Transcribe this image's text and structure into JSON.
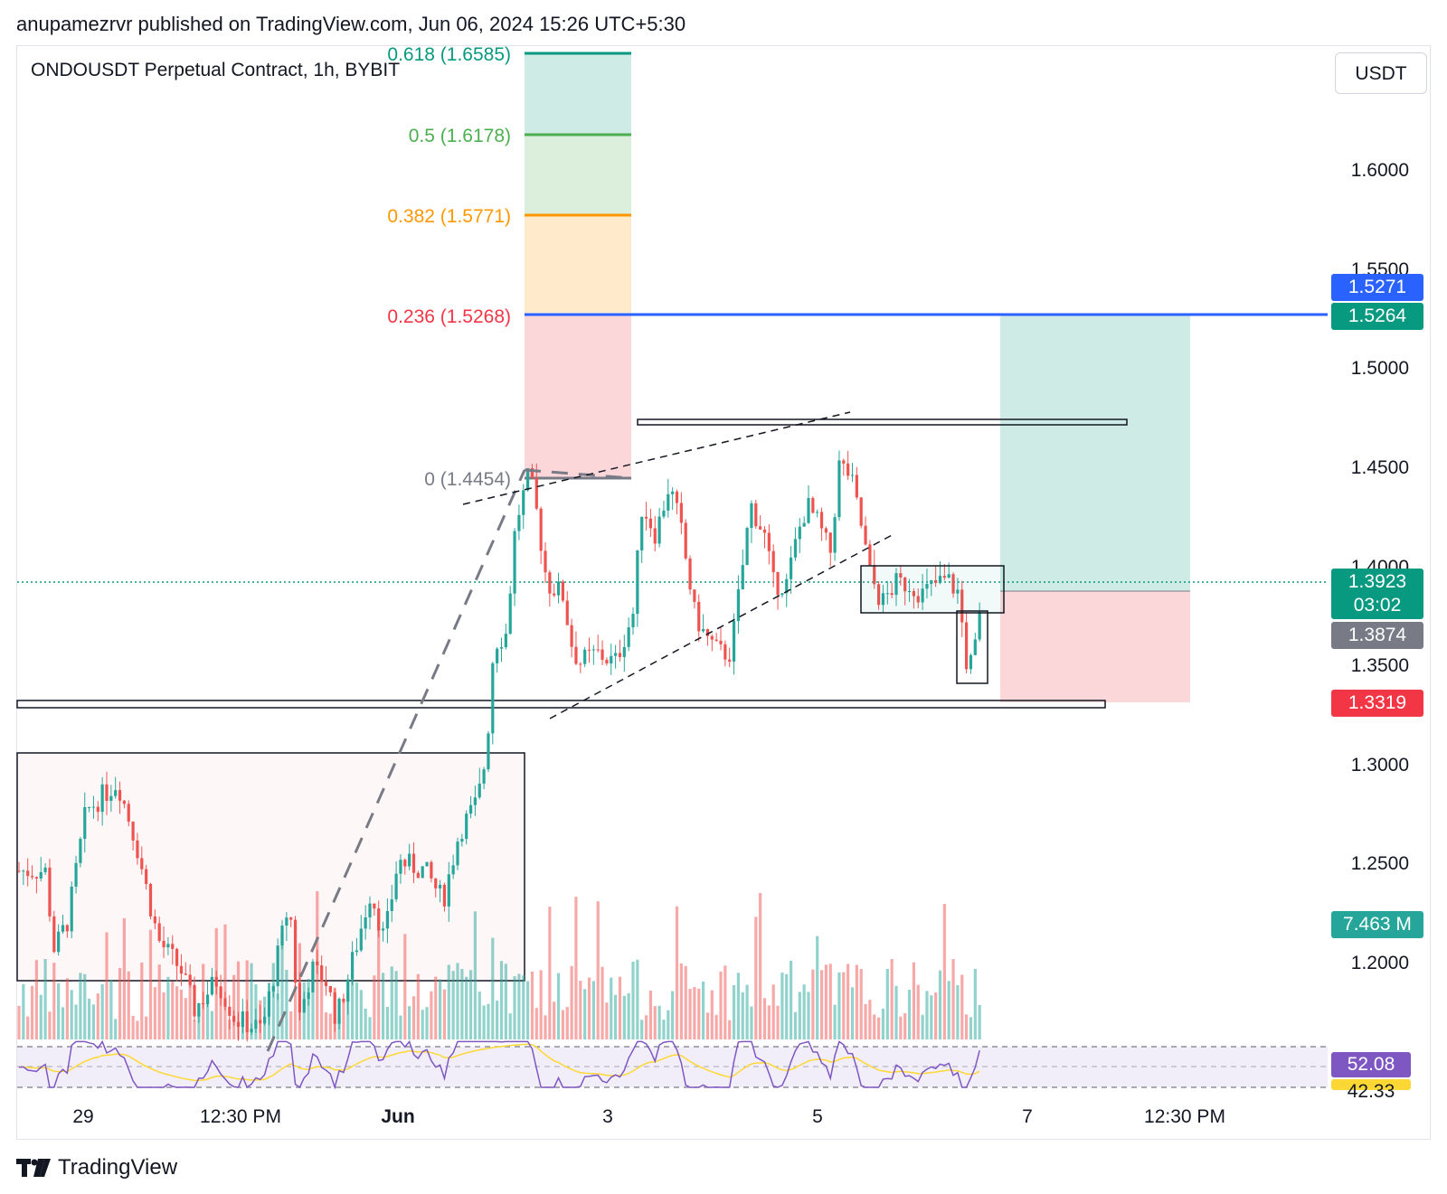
{
  "header": {
    "published": "anupamezrvr published on TradingView.com, Jun 06, 2024 15:26 UTC+5:30"
  },
  "symbol": {
    "title": "ONDOUSDT Perpetual Contract, 1h, BYBIT"
  },
  "currency_button": "USDT",
  "footer": {
    "brand": "TradingView"
  },
  "chart_data": {
    "type": "candlestick",
    "symbol": "ONDOUSDT Perpetual Contract",
    "interval": "1h",
    "exchange": "BYBIT",
    "y_axis": {
      "ticks": [
        "1.6000",
        "1.5500",
        "1.5000",
        "1.4500",
        "1.4000",
        "1.3500",
        "1.3000",
        "1.2500",
        "1.2000"
      ],
      "range": [
        1.175,
        1.665
      ]
    },
    "x_axis": {
      "ticks": [
        "29",
        "12:30 PM",
        "Jun",
        "3",
        "5",
        "7",
        "12:30 PM"
      ]
    },
    "fibonacci": [
      {
        "label": "0.618 (1.6585)",
        "level": 1.6585,
        "color": "#089981"
      },
      {
        "label": "0.5 (1.6178)",
        "level": 1.6178,
        "color": "#4caf50"
      },
      {
        "label": "0.382 (1.5771)",
        "level": 1.5771,
        "color": "#ff9800"
      },
      {
        "label": "0.236 (1.5268)",
        "level": 1.5268,
        "color": "#f23645"
      },
      {
        "label": "0 (1.4454)",
        "level": 1.4454,
        "color": "#787b86"
      }
    ],
    "price_labels": [
      {
        "value": "1.5271",
        "color": "#2962ff"
      },
      {
        "value": "1.5264",
        "color": "#089981"
      },
      {
        "value": "1.3923",
        "sub": "03:02",
        "color": "#089981"
      },
      {
        "value": "1.3874",
        "color": "#787b86"
      },
      {
        "value": "1.3319",
        "color": "#f23645"
      },
      {
        "value": "7.463 M",
        "color": "#26a69a"
      }
    ],
    "long_position": {
      "entry": 1.3874,
      "target": 1.5264,
      "stop": 1.3319
    },
    "current_price": 1.3923,
    "candle_close_countdown": "03:02",
    "last_volume": "7.463 M",
    "rsi": {
      "value": "52.08",
      "ma": "42.33",
      "upper": 70,
      "mid": 50,
      "lower": 30
    },
    "colors": {
      "up": "#26a69a",
      "down": "#ef5350",
      "fib_line": "#2962ff",
      "rsi_line": "#7e57c2",
      "rsi_ma": "#fdd835"
    }
  }
}
